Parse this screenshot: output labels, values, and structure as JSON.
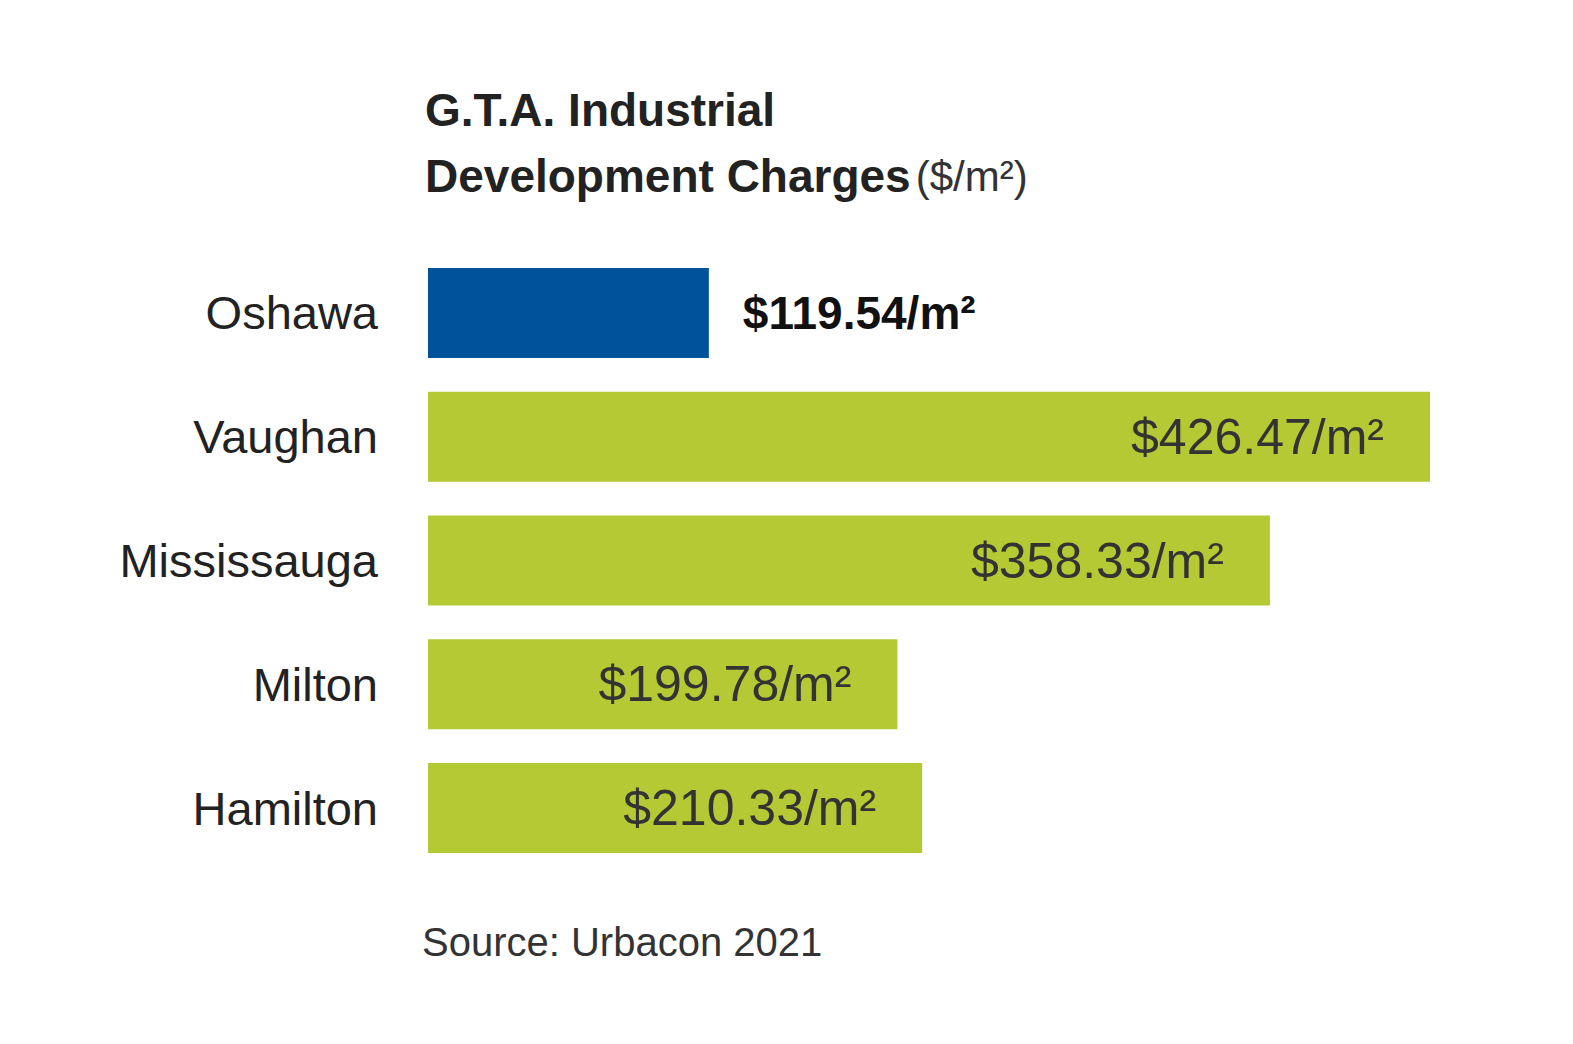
{
  "chart_data": {
    "type": "bar",
    "orientation": "horizontal",
    "title": "G.T.A. Industrial\nDevelopment Charges ($/m²)",
    "categories": [
      "Oshawa",
      "Vaughan",
      "Mississauga",
      "Milton",
      "Hamilton"
    ],
    "values": [
      119.54,
      426.47,
      358.33,
      199.78,
      210.33
    ],
    "value_labels": [
      "$119.54/m²",
      "$426.47/m²",
      "$358.33/m²",
      "$199.78/m²",
      "$210.33/m²"
    ],
    "colors": [
      "#00539b",
      "#b5c934",
      "#b5c934",
      "#b5c934",
      "#b5c934"
    ],
    "xlim": [
      0,
      426.47
    ],
    "data_labels": true,
    "tick_labels": "y",
    "grid": false,
    "source": "Source: Urbacon 2021"
  }
}
